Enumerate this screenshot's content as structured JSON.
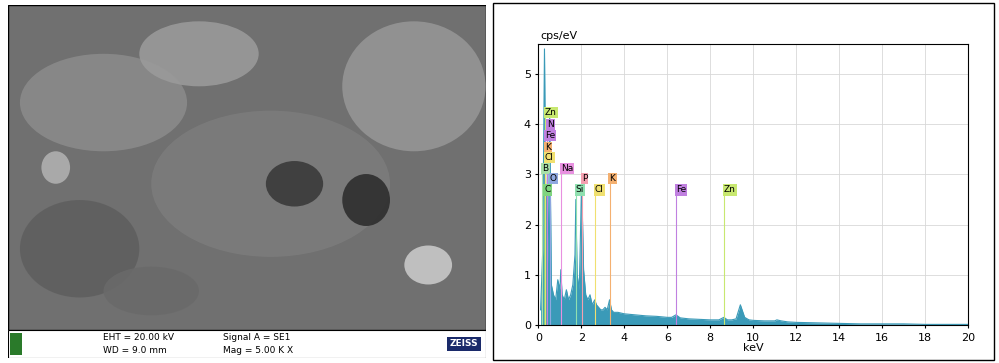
{
  "micrograph": {
    "info_left": [
      "EHT = 20.00 kV",
      "WD = 9.0 mm"
    ],
    "info_middle": [
      "Signal A = SE1",
      "Mag = 5.00 K X"
    ],
    "brand": "ZEISS"
  },
  "chart_data": {
    "type": "area",
    "y_label": "cps/eV",
    "x_label": "keV",
    "color": "#3a9ab8",
    "grid": true,
    "xlim": [
      0,
      20
    ],
    "xticks": [
      0,
      2,
      4,
      6,
      8,
      10,
      12,
      14,
      16,
      18,
      20
    ],
    "ylim": [
      0,
      5.6
    ],
    "yticks": [
      0,
      1,
      2,
      3,
      4,
      5
    ],
    "x": [
      0.1,
      0.2,
      0.28,
      0.35,
      0.39,
      0.45,
      0.52,
      0.6,
      0.7,
      0.8,
      0.9,
      1.0,
      1.04,
      1.1,
      1.2,
      1.3,
      1.4,
      1.5,
      1.6,
      1.7,
      1.74,
      1.8,
      1.9,
      2.01,
      2.1,
      2.2,
      2.3,
      2.4,
      2.5,
      2.62,
      2.7,
      2.8,
      2.9,
      3.0,
      3.1,
      3.2,
      3.31,
      3.4,
      3.5,
      3.7,
      4.0,
      4.5,
      5.0,
      5.5,
      6.0,
      6.2,
      6.4,
      6.6,
      7.0,
      7.5,
      8.0,
      8.4,
      8.63,
      8.8,
      9.0,
      9.2,
      9.4,
      9.6,
      9.8,
      10.0,
      10.5,
      11.0,
      11.1,
      11.3,
      11.6,
      12,
      13,
      14,
      15,
      16,
      17,
      18,
      19,
      20
    ],
    "values": [
      0.3,
      1.5,
      5.5,
      2.0,
      2.6,
      1.2,
      4.2,
      0.8,
      0.6,
      0.5,
      0.9,
      0.7,
      1.1,
      0.6,
      0.5,
      0.7,
      0.5,
      0.6,
      0.8,
      1.4,
      2.5,
      1.0,
      0.7,
      2.9,
      1.1,
      0.6,
      0.5,
      0.6,
      0.4,
      0.5,
      0.4,
      0.35,
      0.3,
      0.3,
      0.35,
      0.3,
      0.5,
      0.3,
      0.25,
      0.25,
      0.22,
      0.2,
      0.18,
      0.17,
      0.15,
      0.15,
      0.2,
      0.14,
      0.12,
      0.11,
      0.1,
      0.1,
      0.15,
      0.1,
      0.1,
      0.12,
      0.4,
      0.15,
      0.1,
      0.09,
      0.08,
      0.08,
      0.1,
      0.08,
      0.06,
      0.05,
      0.04,
      0.03,
      0.02,
      0.02,
      0.02,
      0.01,
      0.01,
      0.01
    ],
    "peak_labels": [
      {
        "label": "Zn",
        "energy": 0.3,
        "height": 4.15,
        "color": "#c8e870"
      },
      {
        "label": "N",
        "energy": 0.39,
        "height": 3.9,
        "color": "#c080e0"
      },
      {
        "label": "Fe",
        "energy": 0.3,
        "height": 3.68,
        "color": "#c080e0"
      },
      {
        "label": "K",
        "energy": 0.3,
        "height": 3.45,
        "color": "#f4b070"
      },
      {
        "label": "Cl",
        "energy": 0.3,
        "height": 3.25,
        "color": "#f0e070"
      },
      {
        "label": "B",
        "energy": 0.18,
        "height": 3.03,
        "color": "#a8e0a8"
      },
      {
        "label": "Na",
        "energy": 1.04,
        "height": 3.03,
        "color": "#e890e0"
      },
      {
        "label": "O",
        "energy": 0.52,
        "height": 2.82,
        "color": "#8fa8e0"
      },
      {
        "label": "C",
        "energy": 0.28,
        "height": 2.6,
        "color": "#7fd47f"
      },
      {
        "label": "Si",
        "energy": 1.74,
        "height": 2.6,
        "color": "#90e0b0"
      },
      {
        "label": "P",
        "energy": 2.01,
        "height": 2.82,
        "color": "#f4a0b0"
      },
      {
        "label": "Cl",
        "energy": 2.62,
        "height": 2.6,
        "color": "#f0e070"
      },
      {
        "label": "K",
        "energy": 3.31,
        "height": 2.82,
        "color": "#f4b070"
      },
      {
        "label": "Fe",
        "energy": 6.4,
        "height": 2.6,
        "color": "#c080e0"
      },
      {
        "label": "Zn",
        "energy": 8.63,
        "height": 2.6,
        "color": "#c8e870"
      }
    ]
  }
}
